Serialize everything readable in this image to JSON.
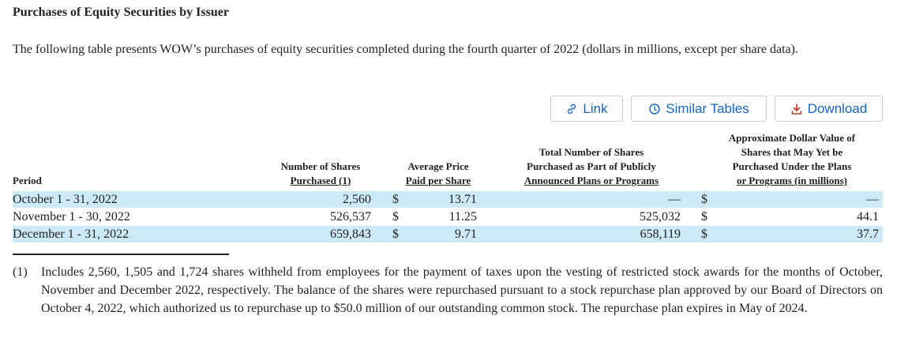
{
  "title": "Purchases of Equity Securities by Issuer",
  "intro": "The following table presents WOW’s purchases of equity securities completed during the fourth quarter of 2022 (dollars in millions, except per share data).",
  "buttons": [
    "Link",
    "Similar Tables",
    "Download"
  ],
  "table": {
    "header": [
      [
        "Period"
      ],
      [
        "Number of Shares",
        "Purchased (1)"
      ],
      [
        "Average Price",
        "Paid per Share"
      ],
      [
        "Total Number of Shares",
        "Purchased as Part of Publicly",
        "Announced Plans or Programs"
      ],
      [
        "Approximate Dollar Value of",
        "Shares that May Yet be",
        "Purchased Under the Plans",
        "or Programs (in millions)"
      ]
    ],
    "rows": [
      [
        "October 1 - 31, 2022",
        "2,560",
        "$",
        "13.71",
        "—",
        "$",
        "—"
      ],
      [
        "November 1 - 30, 2022",
        "526,537",
        "$",
        "11.25",
        "525,032",
        "$",
        "44.1"
      ],
      [
        "December 1 - 31, 2022",
        "659,843",
        "$",
        "9.71",
        "658,119",
        "$",
        "37.7"
      ]
    ]
  },
  "footnote": {
    "marker": "(1)",
    "text": "Includes 2,560, 1,505 and 1,724 shares withheld from employees for the payment of taxes upon the vesting of restricted stock awards for the months of October, November and December 2022, respectively. The balance of the shares were repurchased pursuant to a stock repurchase plan approved by our Board of Directors on October 4, 2022, which authorized us to repurchase up to $50.0 million of our outstanding common stock. The repurchase plan expires in May of 2024."
  }
}
